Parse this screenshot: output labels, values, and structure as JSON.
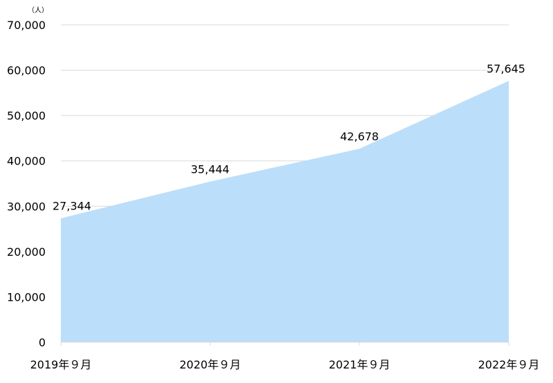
{
  "chart_data": {
    "type": "area",
    "categories": [
      "2019年９月",
      "2020年９月",
      "2021年９月",
      "2022年９月"
    ],
    "series": [
      {
        "values": [
          27344,
          35444,
          42678,
          57645
        ]
      }
    ],
    "data_labels": [
      "27,344",
      "35,444",
      "42,678",
      "57,645"
    ],
    "y_unit": "（人）",
    "ylim": [
      0,
      70000
    ],
    "yticks": [
      0,
      10000,
      20000,
      30000,
      40000,
      50000,
      60000,
      70000
    ],
    "ytick_labels": [
      "0",
      "10,000",
      "20,000",
      "30,000",
      "40,000",
      "50,000",
      "60,000",
      "70,000"
    ],
    "grid": true,
    "legend": "none",
    "colors": {
      "area": "#bbdefb",
      "grid": "#d9d9d9",
      "axis": "#d9d9d9"
    }
  }
}
